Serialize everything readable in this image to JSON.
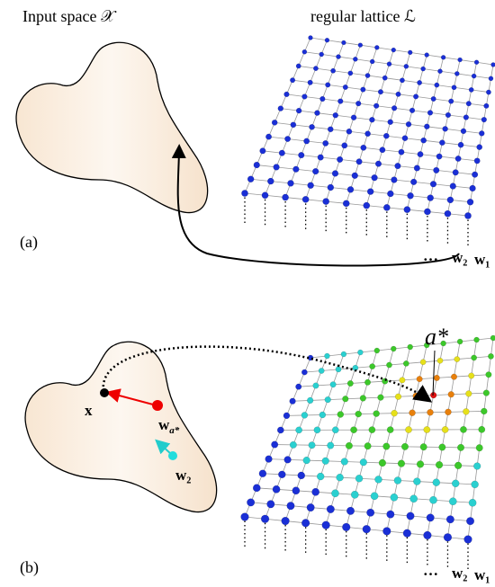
{
  "panel_a": {
    "input_label": "Input space 𝒳",
    "lattice_label": "regular lattice ℒ",
    "tag": "(a)",
    "dots": "…",
    "w2": "w₂",
    "w1": "w₁"
  },
  "panel_b": {
    "tag": "(b)",
    "x_label": "x",
    "wa_label": "w",
    "wa_sub": "a*",
    "w2_inner": "w₂",
    "winner": "a*",
    "dots": "…",
    "w2": "w₂",
    "w1": "w₁"
  }
}
